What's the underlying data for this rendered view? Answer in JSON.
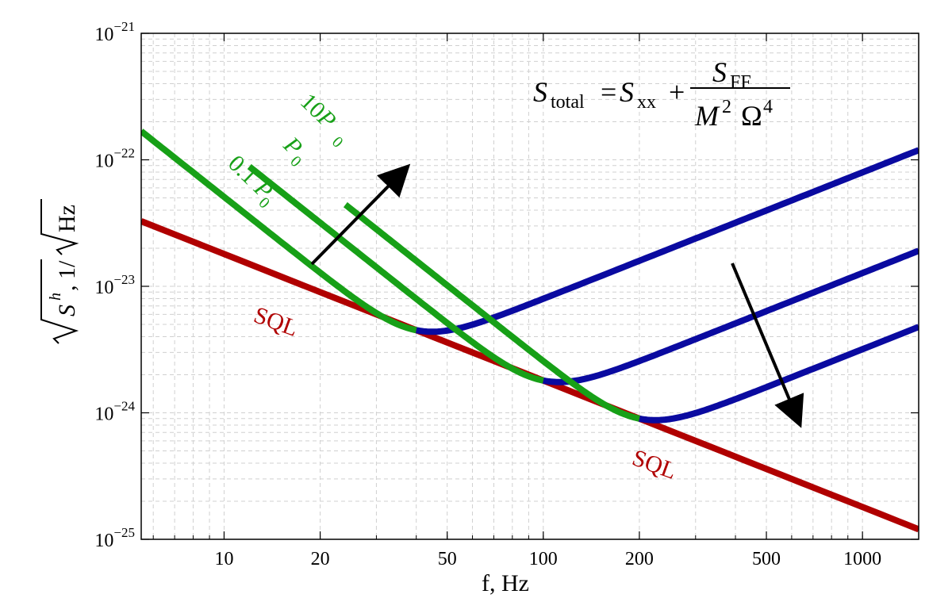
{
  "chart_data": {
    "type": "line",
    "title": "",
    "xlabel": "f, Hz",
    "ylabel": "√S^h, 1/√Hz",
    "xscale": "log",
    "yscale": "log",
    "xlim": [
      5.5,
      1500
    ],
    "ylim": [
      1e-25,
      1e-21
    ],
    "grid": true,
    "colors": {
      "sql": "#b00000",
      "quantum": "#17a017",
      "total": "#0a0aa0",
      "arrow": "#000000"
    },
    "x_ticks": [
      {
        "value": 10,
        "label": "10"
      },
      {
        "value": 20,
        "label": "20"
      },
      {
        "value": 50,
        "label": "50"
      },
      {
        "value": 100,
        "label": "100"
      },
      {
        "value": 200,
        "label": "200"
      },
      {
        "value": 500,
        "label": "500"
      },
      {
        "value": 1000,
        "label": "1000"
      }
    ],
    "y_ticks": [
      {
        "value": 1e-21,
        "base": "10",
        "exp": "−21"
      },
      {
        "value": 1e-22,
        "base": "10",
        "exp": "−22"
      },
      {
        "value": 1e-23,
        "base": "10",
        "exp": "−23"
      },
      {
        "value": 1e-24,
        "base": "10",
        "exp": "−24"
      },
      {
        "value": 1e-25,
        "base": "10",
        "exp": "−25"
      }
    ],
    "sql": {
      "name": "SQL",
      "x_range": [
        5.5,
        1500
      ],
      "h_at_100hz": 1.8e-24,
      "slope": -1
    },
    "series": [
      {
        "name": "0.1 P0",
        "power_factor": 0.1,
        "f_sql": 40
      },
      {
        "name": "P0",
        "power_factor": 1,
        "f_sql": 100
      },
      {
        "name": "10P0",
        "power_factor": 10,
        "f_sql": 200
      }
    ],
    "annotations": {
      "sql_label_1": "SQL",
      "sql_label_2": "SQL",
      "label_10p0_main": "10",
      "label_10p0_sub": "0",
      "label_p0_main": "P",
      "label_p0_sub": "0",
      "label_01p0_main": "0.1",
      "label_01p0_p": "P",
      "label_01p0_sub": "0",
      "arrow_quantum": "increasing power arrow (left)",
      "arrow_total": "increasing power arrow (right)"
    },
    "formula": {
      "lhs_main": "S",
      "lhs_sub": "total",
      "equals": "=",
      "xx_main": "S",
      "xx_sub": "xx",
      "plus": "+",
      "num_main": "S",
      "num_sub": "FF",
      "den_m": "M",
      "den_m_exp": "2",
      "den_omega": "Ω",
      "den_omega_exp": "4"
    }
  }
}
